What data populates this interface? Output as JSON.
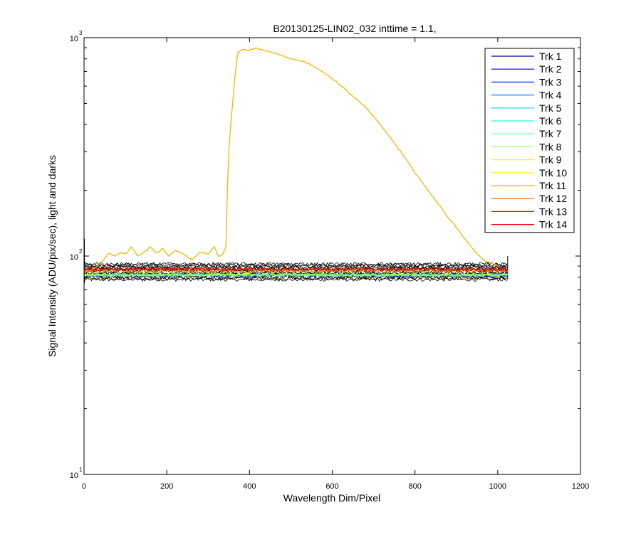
{
  "figure": {
    "title": "B20130125-LIN02_032 inttime = 1.1,",
    "xlabel": "Wavelength Dim/Pixel",
    "ylabel": "Signal Intensity (ADU/pix/sec), light and darks"
  },
  "chart_data": {
    "type": "line",
    "title": "B20130125-LIN02_032 inttime = 1.1,",
    "xlabel": "Wavelength Dim/Pixel",
    "ylabel": "Signal Intensity (ADU/pix/sec), light and darks",
    "xlim": [
      0,
      1200
    ],
    "ylim": [
      10,
      1000
    ],
    "yscale": "log",
    "grid": false,
    "legend_position": "top-right",
    "x_ticks": [
      0,
      200,
      400,
      600,
      800,
      1000,
      1200
    ],
    "y_ticks": [
      {
        "value": 10,
        "base": "10",
        "exp": "1"
      },
      {
        "value": 100,
        "base": "10",
        "exp": "2"
      },
      {
        "value": 1000,
        "base": "10",
        "exp": "3"
      }
    ],
    "series": [
      {
        "name": "Trk 1",
        "color": "#00008f",
        "level": 82
      },
      {
        "name": "Trk 2",
        "color": "#0000df",
        "level": 82
      },
      {
        "name": "Trk 3",
        "color": "#0030ff",
        "level": 82
      },
      {
        "name": "Trk 4",
        "color": "#0080ff",
        "level": 82
      },
      {
        "name": "Trk 5",
        "color": "#00cfff",
        "level": 82
      },
      {
        "name": "Trk 6",
        "color": "#20ffdf",
        "level": 82
      },
      {
        "name": "Trk 7",
        "color": "#60ffa0",
        "level": 82
      },
      {
        "name": "Trk 8",
        "color": "#9fff60",
        "level": 82
      },
      {
        "name": "Trk 9",
        "color": "#dfff20",
        "level": 82
      },
      {
        "name": "Trk 10",
        "color": "#ffef00",
        "level": 85
      },
      {
        "name": "Trk 11",
        "color": "#f0b800",
        "points": [
          [
            0,
            84
          ],
          [
            20,
            87
          ],
          [
            40,
            92
          ],
          [
            60,
            103
          ],
          [
            75,
            100
          ],
          [
            90,
            104
          ],
          [
            100,
            102
          ],
          [
            115,
            110
          ],
          [
            130,
            100
          ],
          [
            145,
            104
          ],
          [
            160,
            110
          ],
          [
            175,
            103
          ],
          [
            190,
            108
          ],
          [
            205,
            100
          ],
          [
            220,
            106
          ],
          [
            240,
            102
          ],
          [
            260,
            96
          ],
          [
            280,
            104
          ],
          [
            300,
            102
          ],
          [
            315,
            110
          ],
          [
            325,
            99
          ],
          [
            337,
            103
          ],
          [
            343,
            110
          ],
          [
            350,
            300
          ],
          [
            360,
            520
          ],
          [
            372,
            860
          ],
          [
            385,
            880
          ],
          [
            400,
            880
          ],
          [
            415,
            895
          ],
          [
            430,
            880
          ],
          [
            450,
            860
          ],
          [
            470,
            840
          ],
          [
            500,
            800
          ],
          [
            530,
            780
          ],
          [
            560,
            730
          ],
          [
            600,
            650
          ],
          [
            640,
            560
          ],
          [
            680,
            480
          ],
          [
            720,
            390
          ],
          [
            760,
            310
          ],
          [
            800,
            240
          ],
          [
            840,
            190
          ],
          [
            880,
            150
          ],
          [
            920,
            120
          ],
          [
            950,
            102
          ],
          [
            970,
            95
          ],
          [
            990,
            92
          ],
          [
            1000,
            90
          ]
        ]
      },
      {
        "name": "Trk 12",
        "color": "#ff6000",
        "level": 86
      },
      {
        "name": "Trk 13",
        "color": "#df1000",
        "level": 87
      },
      {
        "name": "Trk 14",
        "color": "#ff0000",
        "level": 87
      }
    ],
    "dark_traces": {
      "color": "#000000",
      "x_range": [
        0,
        1024
      ],
      "band": [
        78,
        92
      ],
      "count": 14
    }
  }
}
